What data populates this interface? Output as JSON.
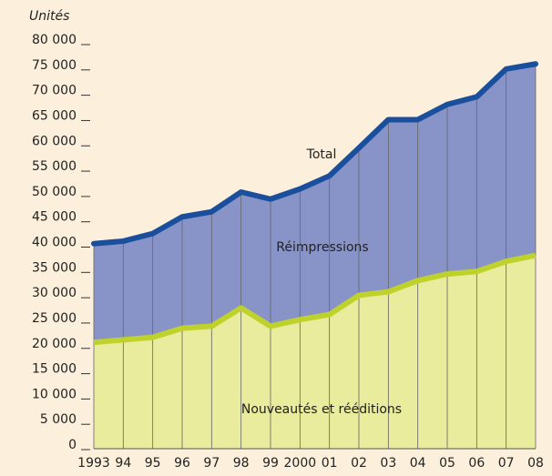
{
  "chart_data": {
    "type": "stacked-area",
    "y_axis_label": "Unités",
    "categories": [
      "1993",
      "94",
      "95",
      "96",
      "97",
      "98",
      "99",
      "2000",
      "01",
      "02",
      "03",
      "04",
      "05",
      "06",
      "07",
      "08"
    ],
    "series": [
      {
        "name": "Nouveautés et rééditions",
        "color": "#e8ec9c",
        "line_color": "#bfd22b",
        "values": [
          21000,
          21500,
          22000,
          23800,
          24200,
          27800,
          24200,
          25500,
          26500,
          30300,
          31000,
          33200,
          34500,
          35000,
          37000,
          38200
        ]
      },
      {
        "name": "Réimpressions",
        "color": "#8893c8",
        "line_color": "#1a4f9e",
        "values": [
          19500,
          19500,
          20500,
          22000,
          22600,
          22900,
          25100,
          25800,
          27400,
          29100,
          34000,
          31800,
          33500,
          34500,
          38000,
          37800
        ]
      }
    ],
    "annotations": [
      "Total"
    ],
    "ylim": [
      0,
      80000
    ],
    "yticks": [
      0,
      {
        "value": 5000,
        "label": "5 000"
      },
      {
        "value": 10000,
        "label": "10 000"
      },
      {
        "value": 15000,
        "label": "15 000"
      },
      {
        "value": 20000,
        "label": "20 000"
      },
      {
        "value": 25000,
        "label": "25 000"
      },
      {
        "value": 30000,
        "label": "30 000"
      },
      {
        "value": 35000,
        "label": "35 000"
      },
      {
        "value": 40000,
        "label": "40 000"
      },
      {
        "value": 45000,
        "label": "45 000"
      },
      {
        "value": 50000,
        "label": "50 000"
      },
      {
        "value": 55000,
        "label": "55 000"
      },
      {
        "value": 60000,
        "label": "60 000"
      },
      {
        "value": 65000,
        "label": "65 000"
      },
      {
        "value": 70000,
        "label": "70 000"
      },
      {
        "value": 75000,
        "label": "75 000"
      },
      {
        "value": 80000,
        "label": "80 000"
      }
    ]
  }
}
